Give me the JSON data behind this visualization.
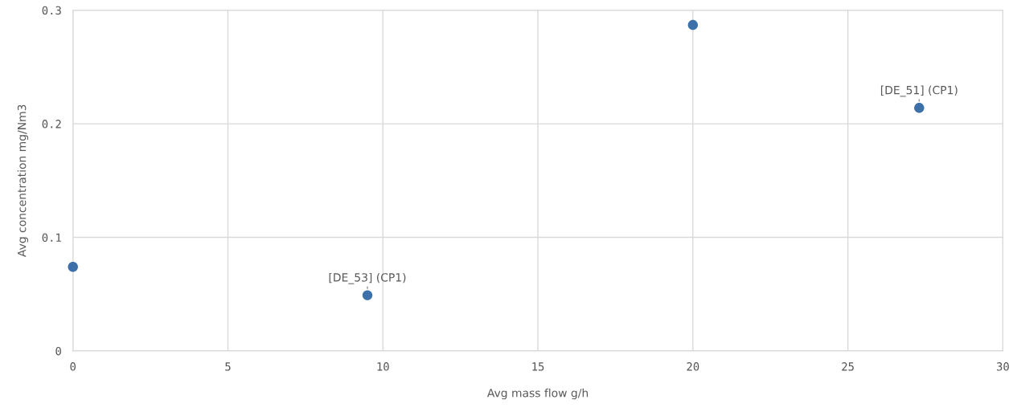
{
  "chart_data": {
    "type": "scatter",
    "xlabel": "Avg mass flow g/h",
    "ylabel": "Avg concentration mg/Nm3",
    "x": [
      0,
      9.5,
      20,
      27.3
    ],
    "series": [
      {
        "color": "#3d70a8",
        "values": [
          0.074,
          0.049,
          0.287,
          0.214
        ]
      }
    ],
    "xlim": [
      0,
      30
    ],
    "xticks": [
      0,
      5,
      10,
      15,
      20,
      25,
      30
    ],
    "ylim": [
      0,
      0.3
    ],
    "yticks": [
      {
        "value": 0,
        "label": "0"
      },
      0.1,
      0.2,
      0.3
    ],
    "grid": true,
    "marker": "circle",
    "annotations": [
      {
        "text": "[DE_53] (CP1)",
        "x": 9.5,
        "y": 0.049
      },
      {
        "text": "[DE_51] (CP1)",
        "x": 27.3,
        "y": 0.214
      }
    ]
  }
}
